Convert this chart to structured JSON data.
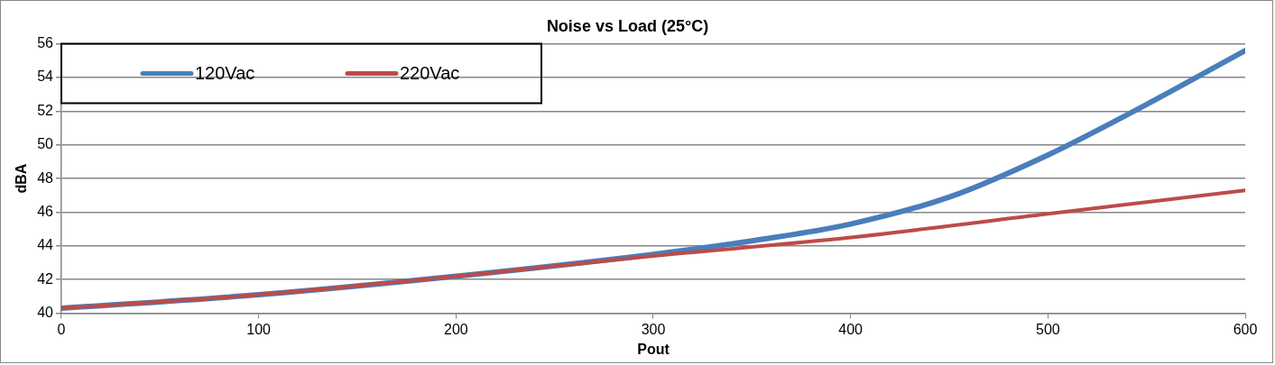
{
  "chart_data": {
    "type": "line",
    "title": "Noise vs Load (25°C)",
    "xlabel": "Pout",
    "ylabel": "dBA",
    "xlim": [
      0,
      600
    ],
    "xticks": [
      0,
      100,
      200,
      300,
      400,
      500,
      600
    ],
    "ylim": [
      40,
      56
    ],
    "yticks": [
      40,
      42,
      44,
      46,
      48,
      50,
      52,
      54,
      56
    ],
    "grid": "y",
    "legend": "top left",
    "marker": "none",
    "line_style": "solid",
    "series": [
      {
        "name": "120Vac",
        "color": "#4a7ebb",
        "x": [
          0,
          100,
          200,
          300,
          350,
          400,
          450,
          500,
          550,
          600
        ],
        "values": [
          40.3,
          41.1,
          42.2,
          43.5,
          44.3,
          45.3,
          46.9,
          49.4,
          52.4,
          55.6
        ]
      },
      {
        "name": "220Vac",
        "color": "#be4b48",
        "x": [
          0,
          100,
          200,
          300,
          400,
          500,
          600
        ],
        "values": [
          40.3,
          41.1,
          42.2,
          43.4,
          44.5,
          45.9,
          47.3
        ]
      }
    ]
  }
}
